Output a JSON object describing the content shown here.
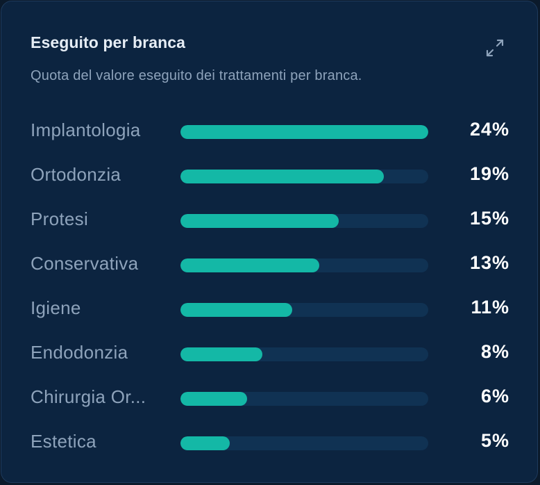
{
  "card": {
    "title": "Eseguito per branca",
    "subtitle": "Quota del valore eseguito dei trattamenti per branca.",
    "expand_icon": "expand-icon"
  },
  "colors": {
    "card_background": "#0c2440",
    "bar_fill": "#14b8a6",
    "bar_track": "#103253",
    "label_text": "#8ea3bb",
    "value_text": "#ffffff"
  },
  "rows": [
    {
      "label": "Implantologia",
      "value": "24%",
      "fill_percent_of_max": 100
    },
    {
      "label": "Ortodonzia",
      "value": "19%",
      "fill_percent_of_max": 82
    },
    {
      "label": "Protesi",
      "value": "15%",
      "fill_percent_of_max": 64
    },
    {
      "label": "Conservativa",
      "value": "13%",
      "fill_percent_of_max": 56
    },
    {
      "label": "Igiene",
      "value": "11%",
      "fill_percent_of_max": 45
    },
    {
      "label": "Endodonzia",
      "value": "8%",
      "fill_percent_of_max": 33
    },
    {
      "label": "Chirurgia Or...",
      "value": "6%",
      "fill_percent_of_max": 27
    },
    {
      "label": "Estetica",
      "value": "5%",
      "fill_percent_of_max": 20
    }
  ]
}
